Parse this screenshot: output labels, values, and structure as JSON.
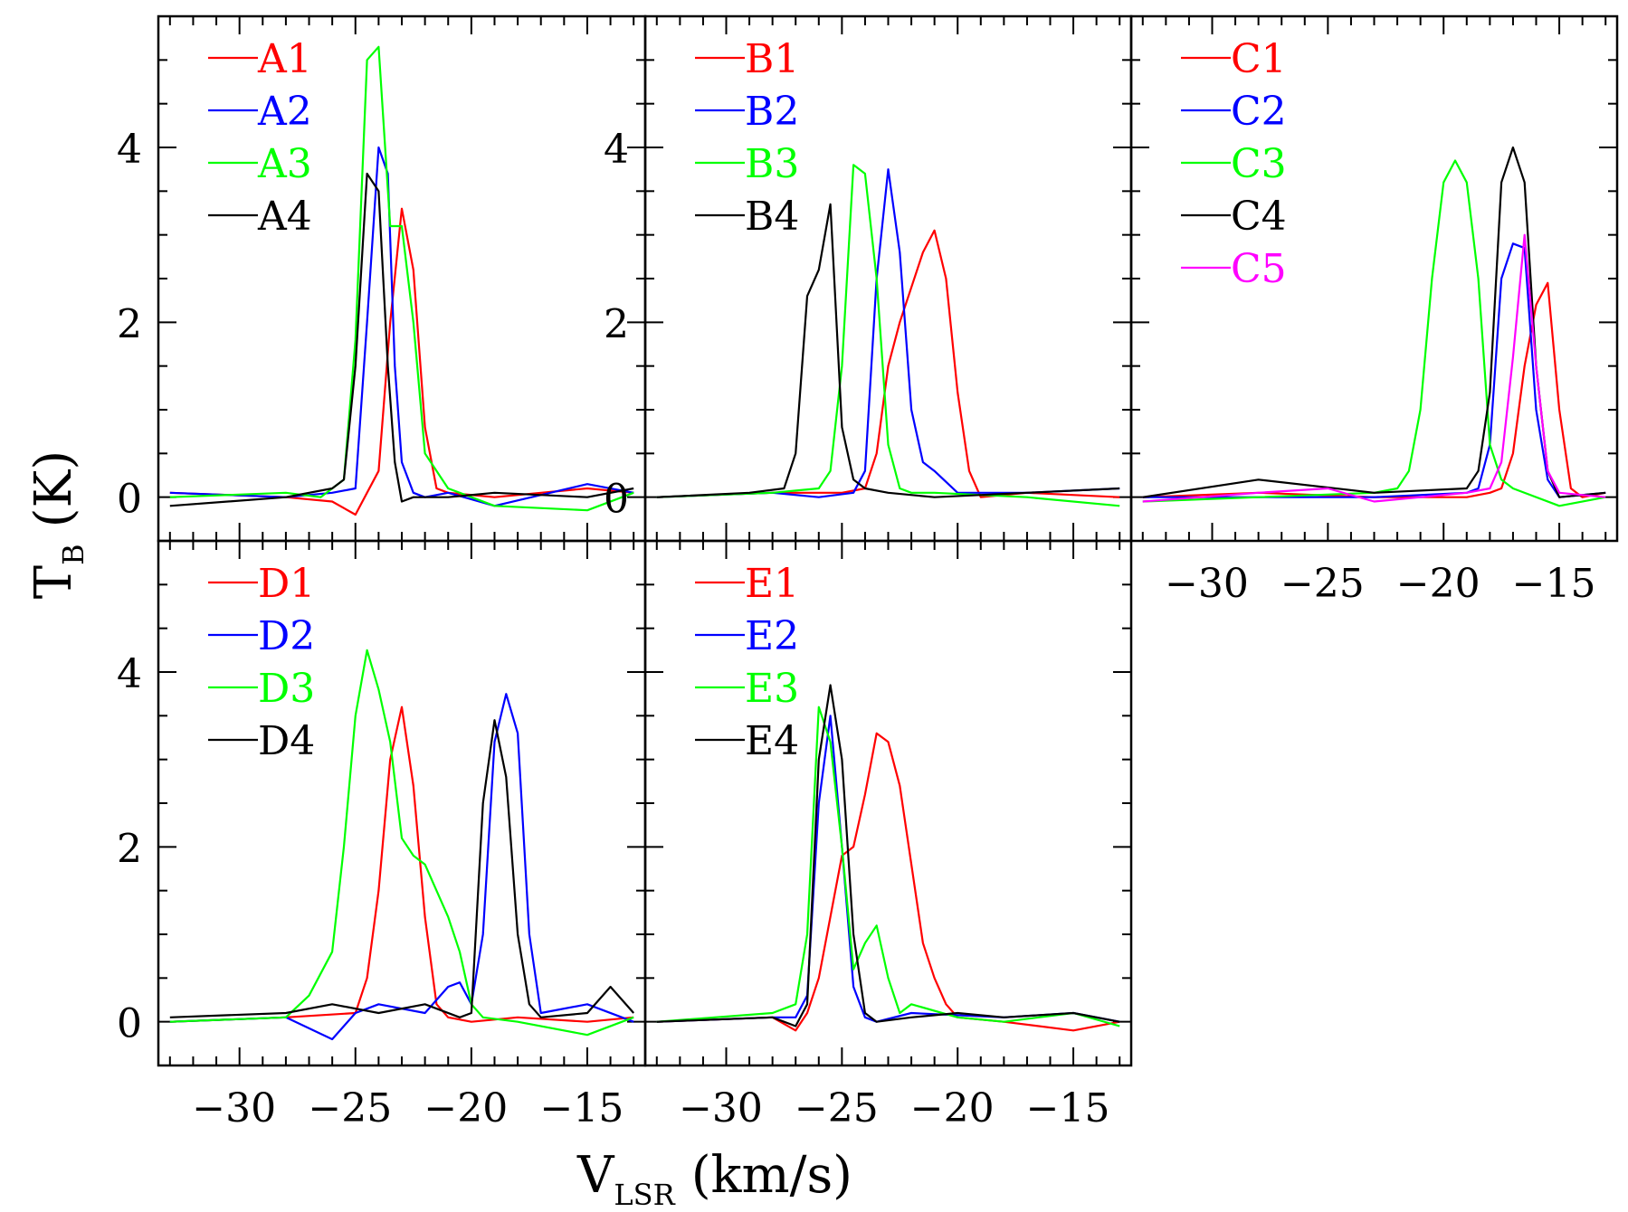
{
  "figure": {
    "ylabel_main": "T",
    "ylabel_sub": "B",
    "ylabel_unit": "(K)",
    "xlabel_main": "V",
    "xlabel_sub": "LSR",
    "xlabel_unit": "(km/s)"
  },
  "chart_data": [
    {
      "type": "line",
      "panel": "A",
      "xlim": [
        -33.5,
        -12.5
      ],
      "ylim": [
        -0.5,
        5.5
      ],
      "yticks": [
        0,
        2,
        4
      ],
      "xticks": [],
      "series": [
        {
          "name": "A1",
          "color": "#ff0000",
          "x": [
            -33,
            -28,
            -26,
            -25,
            -24.5,
            -24,
            -23.5,
            -23,
            -22.5,
            -22,
            -21.5,
            -21,
            -19,
            -15,
            -13
          ],
          "y": [
            0.05,
            0.0,
            -0.05,
            -0.2,
            0.05,
            0.3,
            2.0,
            3.3,
            2.6,
            0.8,
            0.1,
            0.05,
            0.0,
            0.1,
            0.05
          ]
        },
        {
          "name": "A2",
          "color": "#0000ff",
          "x": [
            -33,
            -28,
            -26,
            -25,
            -24.5,
            -24,
            -23.6,
            -23.3,
            -23,
            -22.5,
            -22,
            -21,
            -19,
            -15,
            -13
          ],
          "y": [
            0.05,
            0.0,
            0.05,
            0.1,
            2.0,
            4.0,
            3.7,
            1.5,
            0.4,
            0.05,
            0.0,
            0.05,
            -0.1,
            0.15,
            0.05
          ]
        },
        {
          "name": "A3",
          "color": "#00ff00",
          "x": [
            -33,
            -28,
            -26.5,
            -25.5,
            -25,
            -24.5,
            -24,
            -23.5,
            -23,
            -22.5,
            -22,
            -21,
            -19,
            -15,
            -13
          ],
          "y": [
            0.0,
            0.05,
            0.0,
            0.2,
            1.8,
            5.0,
            5.15,
            3.1,
            3.1,
            2.0,
            0.5,
            0.1,
            -0.1,
            -0.15,
            0.05
          ]
        },
        {
          "name": "A4",
          "color": "#000000",
          "x": [
            -33,
            -28,
            -26,
            -25.5,
            -25,
            -24.5,
            -24,
            -23.6,
            -23.3,
            -23,
            -22.5,
            -21,
            -19,
            -15,
            -13
          ],
          "y": [
            -0.1,
            0.0,
            0.1,
            0.2,
            1.5,
            3.7,
            3.5,
            1.5,
            0.4,
            -0.05,
            0.0,
            0.0,
            0.05,
            0.0,
            0.1
          ]
        }
      ]
    },
    {
      "type": "line",
      "panel": "B",
      "xlim": [
        -33.5,
        -12.5
      ],
      "ylim": [
        -0.5,
        5.5
      ],
      "yticks": [
        0,
        2,
        4
      ],
      "xticks": [],
      "series": [
        {
          "name": "B1",
          "color": "#ff0000",
          "x": [
            -33,
            -28,
            -25,
            -24,
            -23.5,
            -23,
            -22.5,
            -22,
            -21.5,
            -21,
            -20.5,
            -20,
            -19.5,
            -19,
            -17,
            -13
          ],
          "y": [
            0.0,
            0.05,
            0.05,
            0.1,
            0.5,
            1.5,
            2.0,
            2.4,
            2.8,
            3.05,
            2.5,
            1.2,
            0.3,
            0.0,
            0.05,
            0.0
          ]
        },
        {
          "name": "B2",
          "color": "#0000ff",
          "x": [
            -33,
            -28,
            -26,
            -24.5,
            -24,
            -23.5,
            -23,
            -22.5,
            -22,
            -21.5,
            -21,
            -20,
            -17,
            -13
          ],
          "y": [
            0.0,
            0.05,
            0.0,
            0.05,
            0.3,
            2.5,
            3.75,
            2.8,
            1.0,
            0.4,
            0.3,
            0.05,
            0.05,
            0.1
          ]
        },
        {
          "name": "B3",
          "color": "#00ff00",
          "x": [
            -33,
            -28,
            -26,
            -25.5,
            -25,
            -24.5,
            -24,
            -23.5,
            -23,
            -22.5,
            -22,
            -21,
            -17,
            -13
          ],
          "y": [
            0.0,
            0.05,
            0.1,
            0.3,
            1.5,
            3.8,
            3.7,
            2.5,
            0.6,
            0.1,
            0.05,
            0.05,
            0.0,
            -0.1
          ]
        },
        {
          "name": "B4",
          "color": "#000000",
          "x": [
            -33,
            -29,
            -27.5,
            -27,
            -26.5,
            -26,
            -25.5,
            -25,
            -24.5,
            -24,
            -23,
            -21,
            -17,
            -13
          ],
          "y": [
            0.0,
            0.05,
            0.1,
            0.5,
            2.3,
            2.6,
            3.35,
            0.8,
            0.2,
            0.1,
            0.05,
            0.0,
            0.05,
            0.1
          ]
        }
      ]
    },
    {
      "type": "line",
      "panel": "C",
      "xlim": [
        -33.5,
        -12.5
      ],
      "ylim": [
        -0.5,
        5.5
      ],
      "yticks": [],
      "xticks": [
        -30,
        -25,
        -20,
        -15
      ],
      "series": [
        {
          "name": "C1",
          "color": "#ff0000",
          "x": [
            -33,
            -28,
            -23,
            -19,
            -18,
            -17.5,
            -17,
            -16.5,
            -16,
            -15.5,
            -15,
            -14.5,
            -14,
            -13
          ],
          "y": [
            0.0,
            0.05,
            0.0,
            0.0,
            0.05,
            0.1,
            0.5,
            1.5,
            2.2,
            2.45,
            1.0,
            0.1,
            0.0,
            0.05
          ]
        },
        {
          "name": "C2",
          "color": "#0000ff",
          "x": [
            -33,
            -28,
            -23,
            -19,
            -18.5,
            -18,
            -17.5,
            -17,
            -16.5,
            -16,
            -15.5,
            -15,
            -13
          ],
          "y": [
            0.0,
            0.0,
            0.0,
            0.05,
            0.1,
            0.6,
            2.5,
            2.9,
            2.85,
            1.0,
            0.2,
            0.0,
            0.05
          ]
        },
        {
          "name": "C3",
          "color": "#00ff00",
          "x": [
            -33,
            -28,
            -23,
            -22,
            -21.5,
            -21,
            -20.5,
            -20,
            -19.5,
            -19,
            -18.5,
            -18,
            -17.5,
            -17,
            -15,
            -13
          ],
          "y": [
            -0.05,
            0.0,
            0.05,
            0.1,
            0.3,
            1.0,
            2.5,
            3.6,
            3.85,
            3.6,
            2.5,
            0.6,
            0.2,
            0.1,
            -0.1,
            0.0
          ]
        },
        {
          "name": "C4",
          "color": "#000000",
          "x": [
            -33,
            -28,
            -23,
            -19,
            -18.5,
            -18,
            -17.5,
            -17,
            -16.5,
            -16,
            -15.5,
            -15,
            -13
          ],
          "y": [
            0.0,
            0.2,
            0.05,
            0.1,
            0.3,
            1.2,
            3.6,
            4.0,
            3.6,
            1.5,
            0.3,
            0.0,
            0.05
          ]
        },
        {
          "name": "C5",
          "color": "#ff00ff",
          "x": [
            -33,
            -28,
            -25,
            -23,
            -19,
            -18,
            -17.5,
            -17,
            -16.5,
            -16,
            -15.5,
            -15,
            -13
          ],
          "y": [
            -0.05,
            0.05,
            0.1,
            -0.05,
            0.05,
            0.1,
            0.4,
            1.6,
            3.0,
            1.5,
            0.3,
            0.05,
            0.0
          ]
        }
      ]
    },
    {
      "type": "line",
      "panel": "D",
      "xlim": [
        -33.5,
        -12.5
      ],
      "ylim": [
        -0.5,
        5.5
      ],
      "yticks": [
        0,
        2,
        4
      ],
      "xticks": [
        -30,
        -25,
        -20,
        -15
      ],
      "series": [
        {
          "name": "D1",
          "color": "#ff0000",
          "x": [
            -33,
            -28,
            -25,
            -24.5,
            -24,
            -23.5,
            -23,
            -22.5,
            -22,
            -21.5,
            -21,
            -20,
            -18,
            -15,
            -13
          ],
          "y": [
            0.0,
            0.05,
            0.1,
            0.5,
            1.5,
            3.0,
            3.6,
            2.7,
            1.2,
            0.2,
            0.05,
            0.0,
            0.05,
            0.0,
            0.05
          ]
        },
        {
          "name": "D2",
          "color": "#0000ff",
          "x": [
            -33,
            -28,
            -26,
            -25,
            -24,
            -22,
            -21,
            -20.5,
            -20,
            -19.5,
            -19,
            -18.5,
            -18,
            -17.5,
            -17,
            -15,
            -13
          ],
          "y": [
            0.0,
            0.05,
            -0.2,
            0.1,
            0.2,
            0.1,
            0.4,
            0.45,
            0.2,
            1.0,
            3.2,
            3.75,
            3.3,
            1.0,
            0.1,
            0.2,
            0.0
          ]
        },
        {
          "name": "D3",
          "color": "#00ff00",
          "x": [
            -33,
            -28,
            -27,
            -26,
            -25.5,
            -25,
            -24.5,
            -24,
            -23.5,
            -23,
            -22.5,
            -22,
            -21.5,
            -21,
            -20.5,
            -20,
            -19.5,
            -18,
            -15,
            -13
          ],
          "y": [
            0.0,
            0.05,
            0.3,
            0.8,
            2.0,
            3.5,
            4.25,
            3.8,
            3.2,
            2.1,
            1.9,
            1.8,
            1.5,
            1.2,
            0.8,
            0.2,
            0.05,
            0.0,
            -0.15,
            0.05
          ]
        },
        {
          "name": "D4",
          "color": "#000000",
          "x": [
            -33,
            -28,
            -26,
            -24,
            -22,
            -20.5,
            -20,
            -19.5,
            -19,
            -18.5,
            -18,
            -17.5,
            -17,
            -15,
            -14,
            -13
          ],
          "y": [
            0.05,
            0.1,
            0.2,
            0.1,
            0.2,
            0.05,
            0.1,
            2.5,
            3.45,
            2.8,
            1.0,
            0.2,
            0.05,
            0.1,
            0.4,
            0.1
          ]
        }
      ]
    },
    {
      "type": "line",
      "panel": "E",
      "xlim": [
        -33.5,
        -12.5
      ],
      "ylim": [
        -0.5,
        5.5
      ],
      "yticks": [],
      "xticks": [
        -30,
        -25,
        -20,
        -15
      ],
      "series": [
        {
          "name": "E1",
          "color": "#ff0000",
          "x": [
            -33,
            -28,
            -27,
            -26.5,
            -26,
            -25.5,
            -25,
            -24.5,
            -24,
            -23.5,
            -23,
            -22.5,
            -22,
            -21.5,
            -21,
            -20.5,
            -20,
            -18,
            -15,
            -13
          ],
          "y": [
            0.0,
            0.05,
            -0.1,
            0.1,
            0.5,
            1.2,
            1.9,
            2.0,
            2.6,
            3.3,
            3.2,
            2.7,
            1.8,
            0.9,
            0.5,
            0.2,
            0.05,
            0.0,
            -0.1,
            0.0
          ]
        },
        {
          "name": "E2",
          "color": "#0000ff",
          "x": [
            -33,
            -28,
            -27,
            -26.5,
            -26,
            -25.5,
            -25,
            -24.5,
            -24,
            -23.5,
            -22,
            -18,
            -15,
            -13
          ],
          "y": [
            0.0,
            0.05,
            0.05,
            0.3,
            2.5,
            3.5,
            2.0,
            0.4,
            0.05,
            0.0,
            0.1,
            0.05,
            0.1,
            0.0
          ]
        },
        {
          "name": "E3",
          "color": "#00ff00",
          "x": [
            -33,
            -28,
            -27,
            -26.5,
            -26,
            -25.5,
            -25,
            -24.5,
            -24,
            -23.5,
            -23,
            -22.5,
            -22,
            -20,
            -18,
            -15,
            -13
          ],
          "y": [
            0.0,
            0.1,
            0.2,
            1.0,
            3.6,
            3.2,
            2.0,
            0.6,
            0.9,
            1.1,
            0.5,
            0.1,
            0.2,
            0.05,
            0.0,
            0.1,
            -0.05
          ]
        },
        {
          "name": "E4",
          "color": "#000000",
          "x": [
            -33,
            -28,
            -27,
            -26.5,
            -26,
            -25.5,
            -25,
            -24.5,
            -24,
            -23.5,
            -22,
            -20,
            -18,
            -15,
            -13
          ],
          "y": [
            0.0,
            0.05,
            -0.05,
            0.2,
            3.0,
            3.85,
            3.0,
            1.0,
            0.1,
            0.0,
            0.05,
            0.1,
            0.05,
            0.1,
            0.0
          ]
        }
      ]
    }
  ]
}
